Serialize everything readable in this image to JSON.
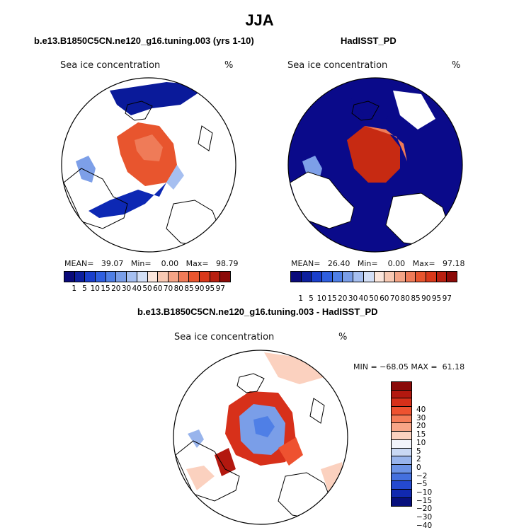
{
  "figure": {
    "title": "JJA"
  },
  "panels": {
    "model": {
      "title": "b.e13.B1850C5CN.ne120_g16.tuning.003 (yrs 1-10)",
      "variable": "Sea ice concentration",
      "unit": "%",
      "stats_text": "MEAN=   39.07   Min=    0.00   Max=   98.79"
    },
    "obs": {
      "title": "HadISST_PD",
      "variable": "Sea ice concentration",
      "unit": "%",
      "stats_text": "MEAN=   26.40   Min=    0.00   Max=   97.18"
    },
    "diff": {
      "title": "b.e13.B1850C5CN.ne120_g16.tuning.003 - HadISST_PD",
      "variable": "Sea ice concentration",
      "unit": "%",
      "stats_text": "MIN = −68.05 MAX =  61.18"
    }
  },
  "colorbars": {
    "abs": {
      "colors": [
        "#0a0a7a",
        "#0d1f9e",
        "#1a3fcc",
        "#2f5fe0",
        "#4f7fe6",
        "#7a9ee8",
        "#a6bff0",
        "#d3dff6",
        "#fbe6dc",
        "#f8c9b3",
        "#f4a486",
        "#ef7b58",
        "#e8552e",
        "#d9381a",
        "#b81f10",
        "#8c0a08"
      ],
      "labels": [
        "1",
        "5",
        "10",
        "15",
        "20",
        "30",
        "40",
        "50",
        "60",
        "70",
        "80",
        "85",
        "90",
        "95",
        "97"
      ]
    },
    "diff": {
      "colors": [
        "#8a0b0a",
        "#b3180f",
        "#d7301a",
        "#ee5230",
        "#f47c58",
        "#f7a587",
        "#fbd1bf",
        "#f2f4fb",
        "#c9d8f4",
        "#98b4ec",
        "#6c93e6",
        "#4470de",
        "#2449d0",
        "#1129b0",
        "#08107d"
      ],
      "labels": [
        "40",
        "30",
        "20",
        "15",
        "10",
        "5",
        "2",
        "0",
        "−2",
        "−5",
        "−10",
        "−15",
        "−20",
        "−30",
        "−40"
      ]
    }
  },
  "chart_data": {
    "type": "heatmap",
    "description_fields": [
      "model",
      "obs",
      "diff"
    ],
    "maps": [
      {
        "name": "b.e13.B1850C5CN.ne120_g16.tuning.003 (yrs 1-10)",
        "mean": 39.07,
        "min": 0.0,
        "max": 98.79,
        "unit": "%"
      },
      {
        "name": "HadISST_PD",
        "mean": 26.4,
        "min": 0.0,
        "max": 97.18,
        "unit": "%"
      },
      {
        "name": "b.e13.B1850C5CN.ne120_g16.tuning.003 - HadISST_PD",
        "min": -68.05,
        "max": 61.18,
        "unit": "%"
      }
    ]
  }
}
